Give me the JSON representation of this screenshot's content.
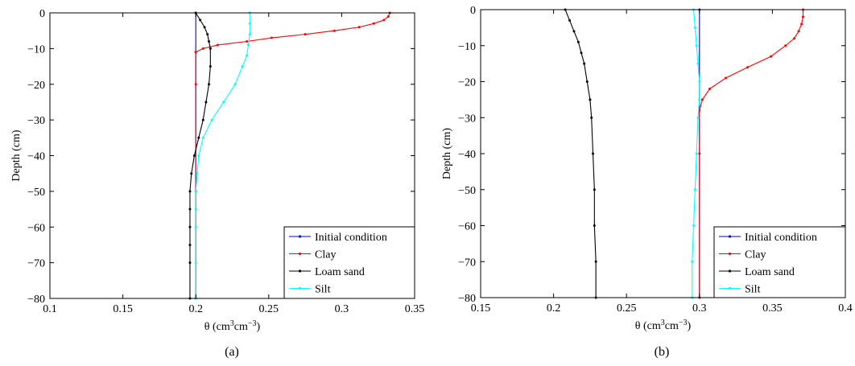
{
  "chart_data": [
    {
      "type": "line",
      "caption": "(a)",
      "xlabel_main": "θ (cm",
      "xlabel_sup1": "3",
      "xlabel_mid": "cm",
      "xlabel_sup2": "−3",
      "xlabel_end": ")",
      "ylabel": "Depth (cm)",
      "xlim": [
        0.1,
        0.35
      ],
      "ylim": [
        -80,
        0
      ],
      "xticks": [
        0.1,
        0.15,
        0.2,
        0.25,
        0.3,
        0.35
      ],
      "xtick_labels": [
        "0.1",
        "0.15",
        "0.2",
        "0.25",
        "0.3",
        "0.35"
      ],
      "yticks": [
        0,
        -10,
        -20,
        -30,
        -40,
        -50,
        -60,
        -70,
        -80
      ],
      "ytick_labels": [
        "0",
        "−10",
        "−20",
        "−30",
        "−40",
        "−50",
        "−60",
        "−70",
        "−80"
      ],
      "grid": false,
      "legend_position": "bottom-right",
      "series": [
        {
          "name": "Initial condition",
          "color": "#0000ff",
          "x": [
            0.2,
            0.2,
            0.2
          ],
          "y": [
            0,
            -11,
            -80
          ]
        },
        {
          "name": "Clay",
          "color": "#ff0000",
          "x": [
            0.333,
            0.332,
            0.329,
            0.322,
            0.312,
            0.295,
            0.275,
            0.252,
            0.235,
            0.215,
            0.205,
            0.2,
            0.2,
            0.2,
            0.2
          ],
          "y": [
            0,
            -1,
            -2,
            -3,
            -4,
            -5,
            -6,
            -7,
            -8,
            -9,
            -10,
            -11,
            -20,
            -50,
            -80
          ]
        },
        {
          "name": "Loam sand",
          "color": "#000000",
          "x": [
            0.2,
            0.203,
            0.206,
            0.208,
            0.209,
            0.21,
            0.21,
            0.209,
            0.207,
            0.205,
            0.202,
            0.199,
            0.197,
            0.196,
            0.196,
            0.196,
            0.196,
            0.196,
            0.196
          ],
          "y": [
            0,
            -2,
            -4,
            -6,
            -8,
            -10,
            -15,
            -20,
            -25,
            -30,
            -35,
            -40,
            -45,
            -50,
            -55,
            -60,
            -65,
            -70,
            -80
          ]
        },
        {
          "name": "Silt",
          "color": "#00ffff",
          "x": [
            0.237,
            0.237,
            0.237,
            0.236,
            0.235,
            0.232,
            0.227,
            0.219,
            0.211,
            0.205,
            0.202,
            0.201,
            0.2,
            0.2,
            0.2,
            0.2,
            0.2
          ],
          "y": [
            0,
            -3,
            -6,
            -9,
            -12,
            -15,
            -20,
            -25,
            -30,
            -35,
            -40,
            -45,
            -50,
            -55,
            -60,
            -70,
            -80
          ]
        }
      ]
    },
    {
      "type": "line",
      "caption": "(b)",
      "xlabel_main": "θ (cm",
      "xlabel_sup1": "3",
      "xlabel_mid": "cm",
      "xlabel_sup2": "−3",
      "xlabel_end": ")",
      "ylabel": "Depth (cm)",
      "xlim": [
        0.15,
        0.4
      ],
      "ylim": [
        -80,
        0
      ],
      "xticks": [
        0.15,
        0.2,
        0.25,
        0.3,
        0.35,
        0.4
      ],
      "xtick_labels": [
        "0.15",
        "0.2",
        "0.25",
        "0.3",
        "0.35",
        "0.4"
      ],
      "yticks": [
        0,
        -10,
        -20,
        -30,
        -40,
        -50,
        -60,
        -70,
        -80
      ],
      "ytick_labels": [
        "0",
        "−10",
        "−20",
        "−30",
        "−40",
        "−50",
        "−60",
        "−70",
        "−80"
      ],
      "grid": false,
      "legend_position": "bottom-right",
      "series": [
        {
          "name": "Initial condition",
          "color": "#0000ff",
          "x": [
            0.3,
            0.3
          ],
          "y": [
            0,
            -80
          ]
        },
        {
          "name": "Clay",
          "color": "#ff0000",
          "x": [
            0.371,
            0.371,
            0.37,
            0.368,
            0.365,
            0.359,
            0.349,
            0.333,
            0.318,
            0.307,
            0.302,
            0.3,
            0.3,
            0.3
          ],
          "y": [
            0,
            -2,
            -4,
            -6,
            -8,
            -10,
            -13,
            -16,
            -19,
            -22,
            -25,
            -28,
            -40,
            -80
          ]
        },
        {
          "name": "Loam sand",
          "color": "#000000",
          "x": [
            0.208,
            0.211,
            0.214,
            0.217,
            0.219,
            0.221,
            0.223,
            0.225,
            0.226,
            0.227,
            0.228,
            0.228,
            0.229,
            0.229
          ],
          "y": [
            0,
            -3,
            -6,
            -9,
            -12,
            -15,
            -20,
            -25,
            -30,
            -40,
            -50,
            -60,
            -70,
            -80
          ]
        },
        {
          "name": "Silt",
          "color": "#00ffff",
          "x": [
            0.296,
            0.297,
            0.298,
            0.299,
            0.3,
            0.3,
            0.299,
            0.298,
            0.297,
            0.296,
            0.295,
            0.295
          ],
          "y": [
            0,
            -5,
            -10,
            -15,
            -20,
            -25,
            -30,
            -40,
            -50,
            -60,
            -70,
            -80
          ]
        }
      ]
    }
  ]
}
